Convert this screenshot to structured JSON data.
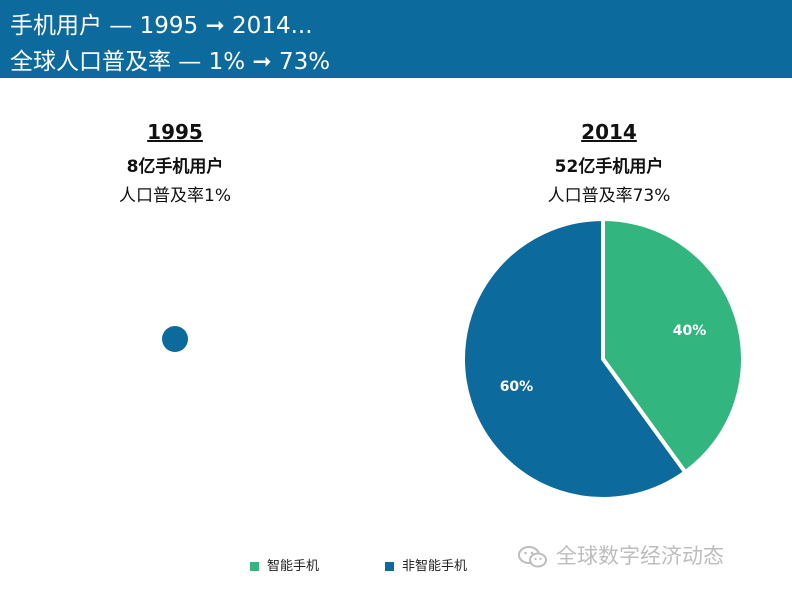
{
  "header": {
    "line1": "手机用户 — 1995 ➞ 2014...",
    "line2": "全球人口普及率 — 1% ➞ 73%"
  },
  "left": {
    "year": "1995",
    "users": "8亿手机用户",
    "penetration": "人口普及率1%"
  },
  "right": {
    "year": "2014",
    "users": "52亿手机用户",
    "penetration": "人口普及率73%"
  },
  "chart_data": {
    "type": "pie",
    "title": "2014",
    "slices": [
      {
        "name": "智能手机",
        "value": 40,
        "label": "40%",
        "color": "#33b57f"
      },
      {
        "name": "非智能手机",
        "value": 60,
        "label": "60%",
        "color": "#0d6a9c"
      }
    ]
  },
  "legend": [
    {
      "label": "智能手机",
      "color": "#33b57f"
    },
    {
      "label": "非智能手机",
      "color": "#0d6a9c"
    }
  ],
  "colors": {
    "header_bg": "#0d6a9c",
    "dot_1995": "#0d6a9c"
  },
  "watermark": {
    "text": "全球数字经济动态"
  }
}
